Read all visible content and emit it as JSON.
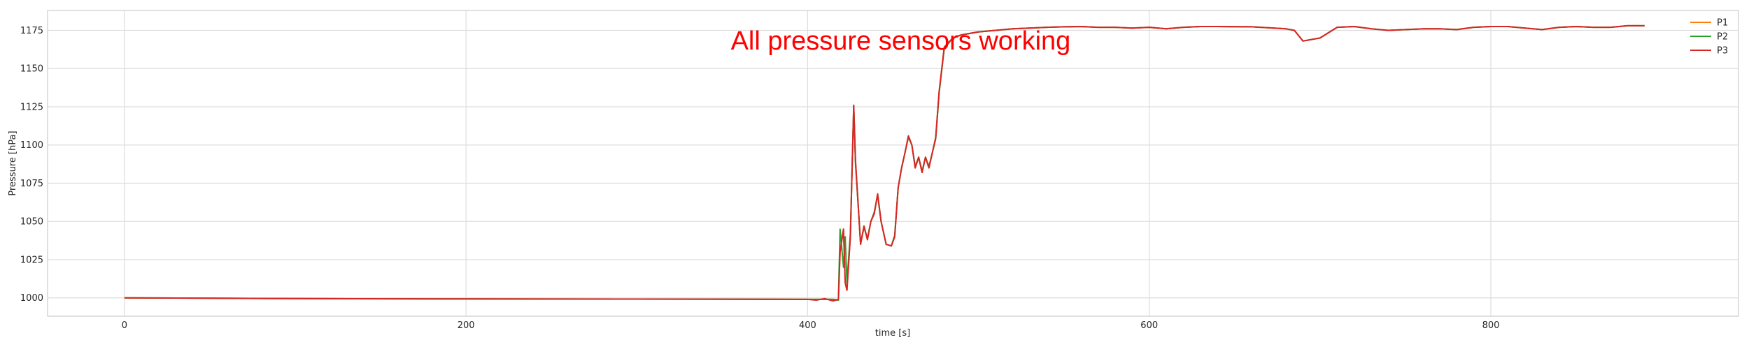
{
  "chart_data": {
    "type": "line",
    "title": "",
    "xlabel": "time [s]",
    "ylabel": "Pressure [hPa]",
    "xlim": [
      -45,
      945
    ],
    "ylim": [
      988,
      1188
    ],
    "x_ticks": [
      0,
      200,
      400,
      600,
      800
    ],
    "y_ticks": [
      1000,
      1025,
      1050,
      1075,
      1100,
      1125,
      1150,
      1175
    ],
    "grid": true,
    "legend_position": "top-right",
    "annotation": {
      "text": "All pressure sensors working",
      "x": 355,
      "y": 1168,
      "color": "#ff0000"
    },
    "series": [
      {
        "name": "P1",
        "color": "#ff7f0e",
        "x": [
          0,
          100,
          200,
          300,
          400,
          415,
          418,
          419,
          421,
          422,
          423,
          425,
          427,
          428,
          431,
          433,
          435,
          437,
          439,
          441,
          443,
          446,
          449,
          451,
          453,
          455,
          457,
          459,
          461,
          463,
          465,
          467,
          469,
          471,
          473,
          475,
          477,
          480,
          485,
          490,
          500,
          510,
          520,
          530,
          540,
          550,
          560,
          570,
          580,
          590,
          600,
          610,
          620,
          630,
          640,
          660,
          680,
          685,
          690,
          700,
          710,
          720,
          730,
          740,
          750,
          760,
          770,
          780,
          790,
          800,
          810,
          820,
          830,
          840,
          850,
          860,
          870,
          880,
          890
        ],
        "y": [
          1000,
          999.5,
          999.3,
          999.2,
          999,
          999,
          998.5,
          1030,
          1045,
          1010,
          1005,
          1040,
          1126,
          1090,
          1035,
          1047,
          1038,
          1050,
          1055,
          1068,
          1050,
          1035,
          1034,
          1040,
          1072,
          1085,
          1095,
          1106,
          1100,
          1085,
          1092,
          1082,
          1092,
          1085,
          1095,
          1105,
          1135,
          1164,
          1170,
          1172,
          1174,
          1175,
          1176,
          1176.5,
          1177,
          1177.3,
          1177.5,
          1177,
          1177,
          1176.5,
          1177,
          1176,
          1177,
          1177.5,
          1177.5,
          1177.3,
          1176,
          1175,
          1168,
          1170,
          1177,
          1177.5,
          1176,
          1175,
          1175.5,
          1176,
          1176,
          1175.5,
          1177,
          1177.5,
          1177.5,
          1176.5,
          1175.5,
          1177,
          1177.5,
          1177,
          1177,
          1178,
          1178
        ]
      },
      {
        "name": "P2",
        "color": "#2ca02c",
        "x": [
          0,
          100,
          200,
          300,
          400,
          415,
          418,
          419,
          421,
          422,
          423,
          425,
          427,
          428,
          431,
          433,
          435,
          437,
          439,
          441,
          443,
          446,
          449,
          451,
          453,
          455,
          457,
          459,
          461,
          463,
          465,
          467,
          469,
          471,
          473,
          475,
          477,
          480,
          485,
          490,
          500,
          510,
          520,
          530,
          540,
          550,
          560,
          570,
          580,
          590,
          600,
          610,
          620,
          630,
          640,
          660,
          680,
          685,
          690,
          700,
          710,
          720,
          730,
          740,
          750,
          760,
          770,
          780,
          790,
          800,
          810,
          820,
          830,
          840,
          850,
          860,
          870,
          880,
          890
        ],
        "y": [
          1000,
          999.5,
          999.3,
          999.2,
          999,
          999,
          998.5,
          1045,
          1020,
          1040,
          1010,
          1042,
          1125,
          1088,
          1036,
          1046,
          1039,
          1050,
          1056,
          1067,
          1050,
          1035,
          1034,
          1041,
          1072,
          1085,
          1095,
          1105,
          1100,
          1086,
          1092,
          1083,
          1092,
          1086,
          1095,
          1104,
          1134,
          1163,
          1170,
          1172,
          1174,
          1175,
          1176,
          1176.5,
          1177,
          1177.3,
          1177.5,
          1177,
          1177,
          1176.5,
          1177,
          1176,
          1177,
          1177.5,
          1177.5,
          1177.3,
          1176,
          1175,
          1168,
          1170,
          1177,
          1177.5,
          1176,
          1175,
          1175.5,
          1176,
          1176,
          1175.5,
          1177,
          1177.5,
          1177.5,
          1176.5,
          1175.5,
          1177,
          1177.5,
          1177,
          1177,
          1178,
          1178
        ]
      },
      {
        "name": "P3",
        "color": "#d62728",
        "x": [
          0,
          100,
          200,
          300,
          400,
          405,
          410,
          415,
          418,
          419,
          421,
          422,
          423,
          425,
          427,
          428,
          431,
          433,
          435,
          437,
          439,
          441,
          443,
          446,
          449,
          451,
          453,
          455,
          457,
          459,
          461,
          463,
          465,
          467,
          469,
          471,
          473,
          475,
          477,
          480,
          485,
          490,
          500,
          510,
          520,
          530,
          540,
          550,
          560,
          570,
          580,
          590,
          600,
          610,
          620,
          630,
          640,
          660,
          680,
          685,
          690,
          700,
          710,
          720,
          730,
          740,
          750,
          760,
          770,
          780,
          790,
          800,
          810,
          820,
          830,
          840,
          850,
          860,
          870,
          880,
          890
        ],
        "y": [
          1000,
          999.5,
          999.3,
          999.2,
          999,
          998.5,
          999.5,
          998,
          999,
          1030,
          1045,
          1010,
          1005,
          1040,
          1126,
          1090,
          1035,
          1047,
          1038,
          1050,
          1055,
          1068,
          1050,
          1035,
          1034,
          1040,
          1072,
          1085,
          1095,
          1106,
          1100,
          1085,
          1092,
          1082,
          1092,
          1085,
          1095,
          1105,
          1135,
          1164,
          1170,
          1172,
          1174,
          1175,
          1176,
          1176.5,
          1177,
          1177.3,
          1177.5,
          1177,
          1177,
          1176.5,
          1177,
          1176,
          1177,
          1177.5,
          1177.5,
          1177.3,
          1176,
          1175,
          1168,
          1170,
          1177,
          1177.5,
          1176,
          1175,
          1175.5,
          1176,
          1176,
          1175.5,
          1177,
          1177.5,
          1177.5,
          1176.5,
          1175.5,
          1177,
          1177.5,
          1177,
          1177,
          1178,
          1178
        ]
      }
    ]
  }
}
